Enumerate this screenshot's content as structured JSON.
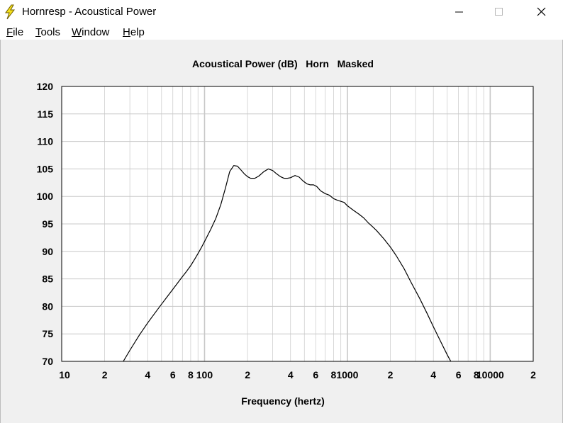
{
  "window": {
    "title": "Hornresp - Acoustical Power",
    "icon": "lightning-bolt-icon",
    "controls": {
      "minimize": "minimize-icon",
      "maximize": "maximize-icon",
      "close": "close-icon"
    }
  },
  "menu": {
    "items": [
      {
        "accel": "F",
        "rest": "ile"
      },
      {
        "accel": "T",
        "rest": "ools"
      },
      {
        "accel": "W",
        "rest": "indow"
      },
      {
        "accel": "H",
        "rest": "elp"
      }
    ]
  },
  "colors": {
    "plot_background": "#ffffff",
    "grid": "#c8c8c8",
    "curve": "#000000",
    "window_background": "#f0f0f0"
  },
  "chart_data": {
    "type": "line",
    "title": "Acoustical Power (dB)   Horn   Masked",
    "xlabel": "Frequency (hertz)",
    "ylabel": "",
    "xscale": "log",
    "xlim": [
      10,
      20000
    ],
    "ylim": [
      70,
      120
    ],
    "yticks": [
      70,
      75,
      80,
      85,
      90,
      95,
      100,
      105,
      110,
      115,
      120
    ],
    "xtick_labels": [
      {
        "value": 10,
        "label": "10"
      },
      {
        "value": 20,
        "label": "2"
      },
      {
        "value": 40,
        "label": "4"
      },
      {
        "value": 60,
        "label": "6"
      },
      {
        "value": 80,
        "label": "8"
      },
      {
        "value": 100,
        "label": "100"
      },
      {
        "value": 200,
        "label": "2"
      },
      {
        "value": 400,
        "label": "4"
      },
      {
        "value": 600,
        "label": "6"
      },
      {
        "value": 800,
        "label": "8"
      },
      {
        "value": 1000,
        "label": "1000"
      },
      {
        "value": 2000,
        "label": "2"
      },
      {
        "value": 4000,
        "label": "4"
      },
      {
        "value": 6000,
        "label": "6"
      },
      {
        "value": 8000,
        "label": "8"
      },
      {
        "value": 10000,
        "label": "10000"
      },
      {
        "value": 20000,
        "label": "2"
      }
    ],
    "grid": true,
    "series": [
      {
        "x": [
          27,
          30,
          35,
          40,
          45,
          50,
          55,
          60,
          65,
          70,
          75,
          80,
          85,
          90,
          95,
          100,
          110,
          120,
          130,
          140,
          150,
          160,
          170,
          180,
          190,
          200,
          210,
          225,
          240,
          260,
          280,
          300,
          320,
          340,
          360,
          380,
          400,
          430,
          460,
          490,
          520,
          550,
          580,
          610,
          650,
          700,
          750,
          800,
          850,
          900,
          950,
          1000,
          1100,
          1200,
          1300,
          1400,
          1500,
          1600,
          1800,
          2000,
          2200,
          2500,
          2800,
          3200,
          3600,
          4000,
          4500,
          5000,
          5500,
          6000
        ],
        "y": [
          70,
          72,
          74.8,
          77,
          78.8,
          80.4,
          81.8,
          83.1,
          84.3,
          85.4,
          86.4,
          87.4,
          88.5,
          89.6,
          90.7,
          91.8,
          93.9,
          96,
          98.5,
          101.5,
          104.5,
          105.6,
          105.5,
          104.8,
          104.1,
          103.6,
          103.3,
          103.3,
          103.7,
          104.5,
          105,
          104.7,
          104.1,
          103.6,
          103.3,
          103.3,
          103.4,
          103.8,
          103.5,
          102.8,
          102.3,
          102.1,
          102.1,
          101.8,
          101,
          100.5,
          100.2,
          99.6,
          99.3,
          99.1,
          98.9,
          98.3,
          97.5,
          96.8,
          96.1,
          95.2,
          94.5,
          93.8,
          92.3,
          90.8,
          89.2,
          86.8,
          84.3,
          81.5,
          78.8,
          76.3,
          73.6,
          71.2,
          69.2,
          67.3
        ]
      }
    ]
  }
}
